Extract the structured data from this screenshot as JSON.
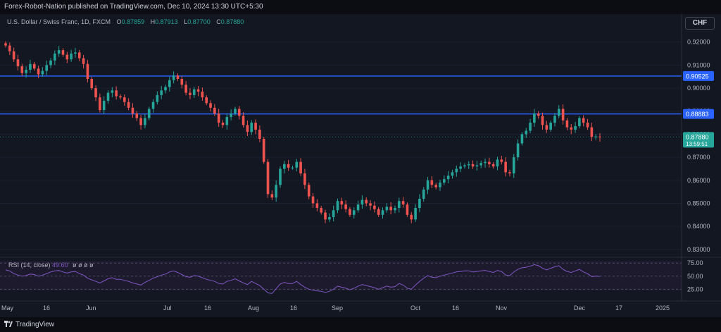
{
  "header": {
    "published": "Forex-Robot-Nation published on TradingView.com, Dec 10, 2024 13:30 UTC+5:30"
  },
  "legend": {
    "symbol": "U.S. Dollar / Swiss Franc, 1D, FXCM",
    "o_label": "O",
    "o": "0.87859",
    "h_label": "H",
    "h": "0.87913",
    "l_label": "L",
    "l": "0.87700",
    "c_label": "C",
    "c": "0.87880"
  },
  "currency_button": "CHF",
  "rsi": {
    "label": "RSI (14, close)",
    "value": "49.60",
    "extra": "ø ø ø ø"
  },
  "footer": {
    "brand": "TradingView"
  },
  "colors": {
    "up": "#26a69a",
    "down": "#ef5350",
    "hline": "#2962ff",
    "rsi": "#7e57c2",
    "bg": "#131722"
  },
  "chart_data": {
    "type": "candlestick",
    "title": "U.S. Dollar / Swiss Franc, 1D, FXCM",
    "currency": "CHF",
    "y_ticks": [
      "0.92000",
      "0.91000",
      "0.90000",
      "0.89000",
      "0.88000",
      "0.87000",
      "0.86000",
      "0.85000",
      "0.84000",
      "0.83000"
    ],
    "ylim": [
      0.8275,
      0.9245
    ],
    "x_ticks": [
      "May",
      "16",
      "Jun",
      "Jul",
      "16",
      "Aug",
      "16",
      "Sep",
      "Oct",
      "16",
      "Nov",
      "Dec",
      "17",
      "2025"
    ],
    "horizontal_lines": [
      {
        "value": 0.90525,
        "label": "0.90525"
      },
      {
        "value": 0.88883,
        "label": "0.88883"
      }
    ],
    "last_price": {
      "value": 0.8788,
      "label": "0.87880",
      "countdown": "13:59:51"
    },
    "closes": [
      0.9185,
      0.916,
      0.9125,
      0.9095,
      0.9065,
      0.908,
      0.9105,
      0.9085,
      0.906,
      0.9075,
      0.91,
      0.912,
      0.915,
      0.9165,
      0.9145,
      0.9125,
      0.915,
      0.9155,
      0.913,
      0.9105,
      0.904,
      0.9,
      0.896,
      0.8905,
      0.8945,
      0.898,
      0.899,
      0.8965,
      0.896,
      0.894,
      0.8915,
      0.889,
      0.887,
      0.884,
      0.887,
      0.891,
      0.894,
      0.897,
      0.899,
      0.9005,
      0.9035,
      0.9055,
      0.904,
      0.9015,
      0.898,
      0.897,
      0.8995,
      0.8985,
      0.896,
      0.8935,
      0.8915,
      0.889,
      0.885,
      0.884,
      0.8875,
      0.889,
      0.891,
      0.888,
      0.884,
      0.881,
      0.885,
      0.882,
      0.878,
      0.868,
      0.854,
      0.8525,
      0.858,
      0.865,
      0.867,
      0.8655,
      0.8655,
      0.868,
      0.863,
      0.858,
      0.853,
      0.85,
      0.848,
      0.846,
      0.843,
      0.844,
      0.847,
      0.851,
      0.8495,
      0.8475,
      0.845,
      0.847,
      0.8495,
      0.8515,
      0.85,
      0.849,
      0.8475,
      0.845,
      0.847,
      0.8485,
      0.847,
      0.848,
      0.851,
      0.8495,
      0.845,
      0.843,
      0.848,
      0.852,
      0.856,
      0.86,
      0.858,
      0.857,
      0.859,
      0.8605,
      0.862,
      0.8635,
      0.865,
      0.866,
      0.8665,
      0.867,
      0.866,
      0.8665,
      0.8675,
      0.868,
      0.867,
      0.866,
      0.869,
      0.868,
      0.8635,
      0.863,
      0.87,
      0.876,
      0.88,
      0.8815,
      0.885,
      0.889,
      0.888,
      0.884,
      0.882,
      0.885,
      0.888,
      0.891,
      0.886,
      0.883,
      0.882,
      0.8835,
      0.887,
      0.885,
      0.883,
      0.8788,
      0.879,
      0.8788
    ]
  },
  "rsi_chart": {
    "y_ticks": [
      "75.00",
      "50.00",
      "25.00"
    ],
    "values": [
      62,
      60,
      55,
      52,
      50,
      51,
      54,
      53,
      50,
      52,
      55,
      58,
      60,
      61,
      58,
      56,
      58,
      59,
      55,
      52,
      46,
      43,
      40,
      37,
      41,
      45,
      47,
      44,
      44,
      42,
      40,
      37,
      35,
      33,
      38,
      42,
      46,
      49,
      52,
      54,
      58,
      60,
      57,
      53,
      49,
      48,
      51,
      50,
      47,
      44,
      42,
      40,
      36,
      35,
      40,
      42,
      45,
      41,
      37,
      34,
      40,
      36,
      32,
      25,
      18,
      17,
      26,
      35,
      38,
      36,
      36,
      40,
      34,
      29,
      25,
      23,
      22,
      21,
      19,
      21,
      25,
      31,
      29,
      27,
      24,
      27,
      31,
      34,
      32,
      30,
      28,
      25,
      28,
      31,
      29,
      30,
      36,
      33,
      27,
      25,
      33,
      40,
      46,
      51,
      48,
      47,
      50,
      52,
      54,
      56,
      58,
      59,
      60,
      60,
      58,
      59,
      60,
      61,
      59,
      57,
      61,
      59,
      52,
      51,
      58,
      63,
      66,
      67,
      69,
      72,
      70,
      65,
      62,
      65,
      68,
      70,
      63,
      59,
      57,
      60,
      63,
      58,
      55,
      49,
      50,
      49.6
    ]
  }
}
